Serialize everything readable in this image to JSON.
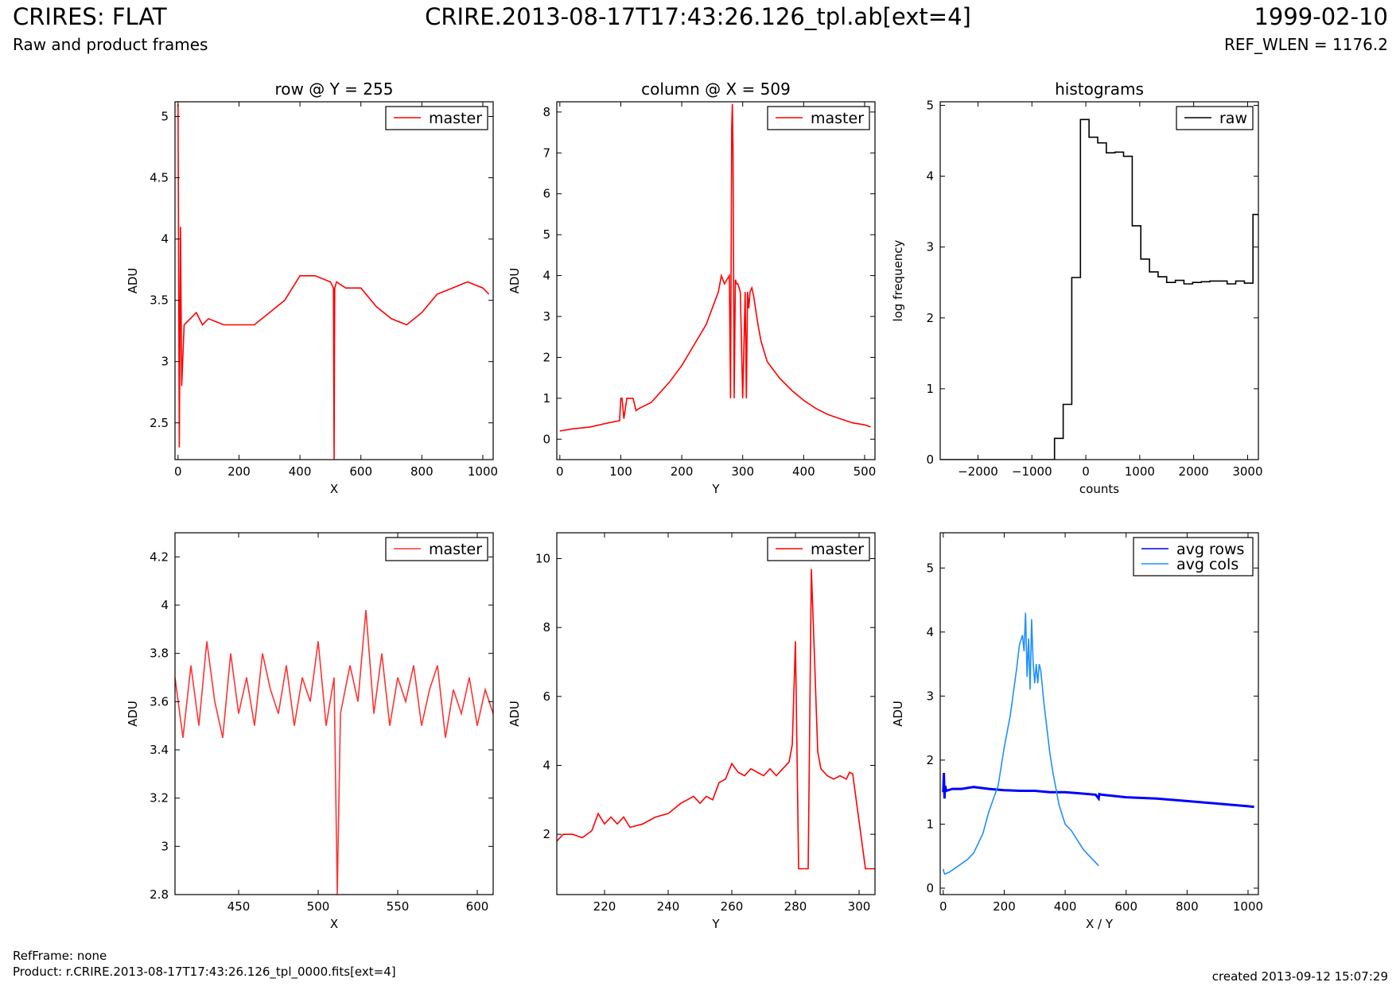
{
  "header": {
    "title": "CRIRES: FLAT",
    "subtitle": "Raw and product frames",
    "file": "CRIRE.2013-08-17T17:43:26.126_tpl.ab[ext=4]",
    "date": "1999-02-10",
    "ref_wlen": "REF_WLEN = 1176.2"
  },
  "footer": {
    "ref_frame": "RefFrame: none",
    "product": "Product: r.CRIRE.2013-08-17T17:43:26.126_tpl_0000.fits[ext=4]",
    "created": "created 2013-09-12 15:07:29"
  },
  "colors": {
    "master": "#ff0000",
    "raw": "#000000",
    "avg_rows": "#0000ff",
    "avg_cols": "#1e90ff"
  },
  "chart_data": [
    {
      "id": "row_full",
      "type": "line",
      "title": "row @ Y = 255",
      "xlabel": "X",
      "ylabel": "ADU",
      "xlim": [
        -10,
        1034
      ],
      "ylim": [
        2.2,
        5.12
      ],
      "xticks": [
        0,
        200,
        400,
        600,
        800,
        1000
      ],
      "yticks": [
        2.5,
        3.0,
        3.5,
        4.0,
        4.5,
        5.0
      ],
      "legend_location": "upper right",
      "series": [
        {
          "name": "master",
          "color": "#ff0000",
          "x": [
            0,
            4,
            8,
            12,
            20,
            40,
            60,
            80,
            100,
            150,
            200,
            250,
            300,
            350,
            400,
            450,
            500,
            510,
            512,
            514,
            520,
            550,
            600,
            650,
            700,
            750,
            800,
            850,
            900,
            950,
            1000,
            1020
          ],
          "y": [
            5.1,
            2.3,
            4.1,
            2.8,
            3.3,
            3.35,
            3.4,
            3.3,
            3.35,
            3.3,
            3.3,
            3.3,
            3.4,
            3.5,
            3.7,
            3.7,
            3.65,
            3.6,
            2.2,
            3.6,
            3.65,
            3.6,
            3.6,
            3.45,
            3.35,
            3.3,
            3.4,
            3.55,
            3.6,
            3.65,
            3.6,
            3.55
          ]
        }
      ]
    },
    {
      "id": "column_full",
      "type": "line",
      "title": "column @ X = 509",
      "xlabel": "Y",
      "ylabel": "ADU",
      "xlim": [
        -5,
        517
      ],
      "ylim": [
        -0.5,
        8.25
      ],
      "xticks": [
        0,
        100,
        200,
        300,
        400,
        500
      ],
      "yticks": [
        0,
        1,
        2,
        3,
        4,
        5,
        6,
        7,
        8
      ],
      "legend_location": "upper right",
      "series": [
        {
          "name": "master",
          "color": "#ff0000",
          "x": [
            0,
            20,
            50,
            80,
            98,
            100,
            102,
            105,
            110,
            120,
            125,
            130,
            150,
            180,
            200,
            220,
            240,
            250,
            260,
            265,
            270,
            278,
            280,
            282,
            283,
            284,
            286,
            288,
            290,
            292,
            296,
            300,
            304,
            306,
            308,
            310,
            312,
            315,
            318,
            320,
            325,
            330,
            340,
            360,
            380,
            400,
            420,
            440,
            460,
            480,
            500,
            510
          ],
          "y": [
            0.2,
            0.25,
            0.3,
            0.4,
            0.45,
            1.0,
            1.0,
            0.5,
            1.0,
            1.0,
            0.7,
            0.75,
            0.9,
            1.4,
            1.8,
            2.3,
            2.8,
            3.2,
            3.6,
            4.0,
            3.8,
            4.0,
            1.0,
            7.6,
            8.2,
            7.1,
            1.0,
            3.9,
            3.8,
            3.8,
            3.6,
            1.0,
            3.6,
            1.0,
            3.6,
            3.2,
            3.6,
            3.7,
            3.5,
            3.3,
            2.8,
            2.4,
            1.9,
            1.5,
            1.2,
            0.95,
            0.75,
            0.6,
            0.5,
            0.4,
            0.35,
            0.3
          ]
        }
      ]
    },
    {
      "id": "histograms",
      "type": "histogram",
      "title": "histograms",
      "xlabel": "counts",
      "ylabel": "log frequency",
      "xlim": [
        -2700,
        3200
      ],
      "ylim": [
        0,
        5.05
      ],
      "xticks": [
        -2000,
        -1000,
        0,
        1000,
        2000,
        3000
      ],
      "yticks": [
        0,
        1,
        2,
        3,
        4,
        5
      ],
      "legend_location": "upper right",
      "series": [
        {
          "name": "raw",
          "color": "#000000",
          "edges": [
            -2700,
            -580,
            -420,
            -260,
            -100,
            60,
            220,
            380,
            540,
            700,
            860,
            1020,
            1180,
            1340,
            1500,
            1660,
            1820,
            1980,
            2140,
            2300,
            2460,
            2620,
            2780,
            2940,
            3100,
            3200
          ],
          "values": [
            0,
            0.3,
            0.78,
            2.57,
            4.8,
            4.55,
            4.47,
            4.33,
            4.34,
            4.28,
            3.3,
            2.83,
            2.65,
            2.58,
            2.5,
            2.53,
            2.48,
            2.5,
            2.51,
            2.52,
            2.52,
            2.48,
            2.52,
            2.49,
            3.46
          ]
        }
      ]
    },
    {
      "id": "row_zoom",
      "type": "line",
      "title": "",
      "xlabel": "X",
      "ylabel": "ADU",
      "xlim": [
        410,
        610
      ],
      "ylim": [
        2.8,
        4.3
      ],
      "xticks": [
        450,
        500,
        550,
        600
      ],
      "yticks": [
        2.8,
        3.0,
        3.2,
        3.4,
        3.6,
        3.8,
        4.0,
        4.2
      ],
      "legend_location": "upper right",
      "series": [
        {
          "name": "master",
          "color": "#ff3333",
          "x": [
            410,
            415,
            420,
            425,
            430,
            435,
            440,
            445,
            450,
            455,
            460,
            465,
            470,
            475,
            480,
            485,
            490,
            495,
            500,
            505,
            510,
            512,
            514,
            520,
            525,
            530,
            535,
            540,
            545,
            550,
            555,
            560,
            565,
            570,
            575,
            580,
            585,
            590,
            595,
            600,
            605,
            610
          ],
          "y": [
            3.7,
            3.45,
            3.75,
            3.5,
            3.85,
            3.6,
            3.45,
            3.8,
            3.55,
            3.7,
            3.5,
            3.8,
            3.65,
            3.55,
            3.75,
            3.5,
            3.7,
            3.6,
            3.85,
            3.5,
            3.7,
            2.8,
            3.55,
            3.75,
            3.6,
            3.98,
            3.55,
            3.8,
            3.5,
            3.7,
            3.6,
            3.75,
            3.5,
            3.65,
            3.75,
            3.45,
            3.65,
            3.55,
            3.7,
            3.5,
            3.65,
            3.55
          ]
        }
      ]
    },
    {
      "id": "column_zoom",
      "type": "line",
      "title": "",
      "xlabel": "Y",
      "ylabel": "ADU",
      "xlim": [
        205,
        305
      ],
      "ylim": [
        0.25,
        10.75
      ],
      "xticks": [
        220,
        240,
        260,
        280,
        300
      ],
      "yticks": [
        2,
        4,
        6,
        8,
        10
      ],
      "legend_location": "upper right",
      "series": [
        {
          "name": "master",
          "color": "#ff0000",
          "x": [
            205,
            207,
            210,
            213,
            216,
            218,
            220,
            222,
            224,
            226,
            228,
            232,
            236,
            240,
            244,
            246,
            248,
            250,
            252,
            254,
            256,
            258,
            260,
            262,
            264,
            266,
            268,
            270,
            272,
            274,
            276,
            278,
            279,
            280,
            281,
            284,
            285,
            286,
            287,
            288,
            290,
            292,
            294,
            296,
            297,
            298,
            302,
            305
          ],
          "y": [
            1.8,
            2.0,
            2.0,
            1.9,
            2.1,
            2.6,
            2.3,
            2.5,
            2.3,
            2.5,
            2.2,
            2.3,
            2.5,
            2.6,
            2.9,
            3.0,
            3.1,
            2.9,
            3.1,
            3.0,
            3.5,
            3.6,
            4.05,
            3.8,
            3.7,
            3.9,
            3.8,
            3.7,
            3.9,
            3.7,
            3.9,
            4.1,
            4.6,
            7.6,
            1.0,
            1.0,
            9.7,
            7.1,
            4.4,
            3.9,
            3.7,
            3.6,
            3.7,
            3.6,
            3.8,
            3.75,
            1.0,
            1.0
          ]
        }
      ]
    },
    {
      "id": "averages",
      "type": "line",
      "title": "",
      "xlabel": "X / Y",
      "ylabel": "ADU",
      "xlim": [
        -10,
        1034
      ],
      "ylim": [
        -0.1,
        5.55
      ],
      "xticks": [
        0,
        200,
        400,
        600,
        800,
        1000
      ],
      "yticks": [
        0,
        1,
        2,
        3,
        4,
        5
      ],
      "legend_location": "upper right",
      "series": [
        {
          "name": "avg rows",
          "color": "#0000ff",
          "x": [
            0,
            2,
            4,
            6,
            10,
            30,
            60,
            100,
            150,
            200,
            250,
            300,
            350,
            400,
            450,
            500,
            510,
            512,
            520,
            560,
            600,
            700,
            800,
            900,
            1000,
            1020
          ],
          "y": [
            1.5,
            1.8,
            1.4,
            1.6,
            1.52,
            1.55,
            1.55,
            1.58,
            1.55,
            1.53,
            1.52,
            1.52,
            1.5,
            1.5,
            1.48,
            1.46,
            1.4,
            1.47,
            1.46,
            1.44,
            1.42,
            1.4,
            1.36,
            1.32,
            1.28,
            1.27
          ]
        },
        {
          "name": "avg cols",
          "color": "#1e90ff",
          "x": [
            0,
            2,
            5,
            20,
            50,
            80,
            100,
            130,
            150,
            180,
            200,
            220,
            240,
            250,
            260,
            265,
            270,
            275,
            280,
            285,
            290,
            295,
            300,
            305,
            310,
            315,
            320,
            330,
            340,
            350,
            360,
            380,
            400,
            420,
            440,
            460,
            480,
            500,
            510
          ],
          "y": [
            0.3,
            0.25,
            0.22,
            0.25,
            0.35,
            0.45,
            0.55,
            0.85,
            1.2,
            1.6,
            2.2,
            2.7,
            3.4,
            3.8,
            3.95,
            3.7,
            4.3,
            3.3,
            3.9,
            3.1,
            4.2,
            3.5,
            3.2,
            3.5,
            3.2,
            3.5,
            3.4,
            2.9,
            2.5,
            2.1,
            1.8,
            1.3,
            1.0,
            0.9,
            0.75,
            0.6,
            0.5,
            0.4,
            0.35
          ]
        }
      ]
    }
  ]
}
